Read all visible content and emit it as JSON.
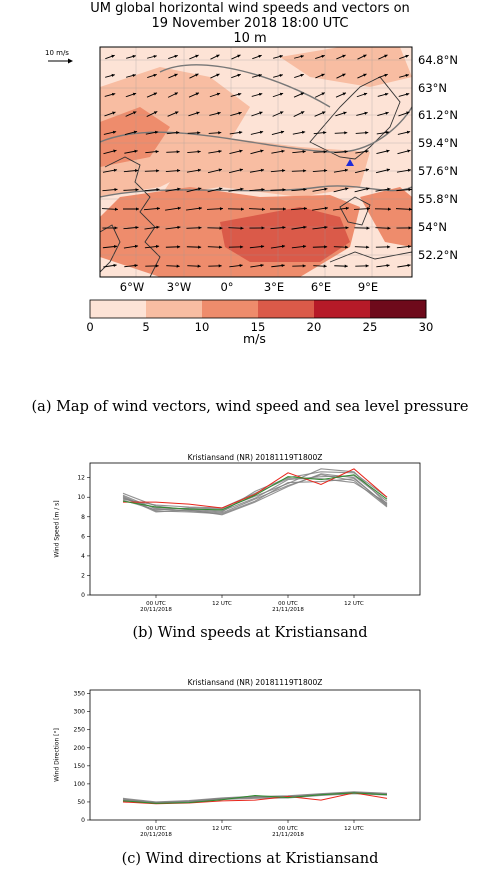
{
  "map": {
    "title_line1": "UM global horizontal wind speeds and vectors on",
    "title_line2": "19 November 2018 18:00 UTC",
    "title_line3": "10 m",
    "ref_vector_label": "10 m/s",
    "lat_labels": [
      "64.8°N",
      "63°N",
      "61.2°N",
      "59.4°N",
      "57.6°N",
      "55.8°N",
      "54°N",
      "52.2°N"
    ],
    "lon_labels": [
      "6°W",
      "3°W",
      "0°",
      "3°E",
      "6°E",
      "9°E"
    ],
    "colorbar_ticks": [
      "0",
      "5",
      "10",
      "15",
      "20",
      "25",
      "30"
    ],
    "colorbar_label": "m/s",
    "colorbar_colors": [
      "#fde3d6",
      "#f8bda2",
      "#ee8c6c",
      "#da5a49",
      "#b61a28",
      "#6e0a1b"
    ],
    "marker_color": "#1f2bd8",
    "caption": "(a) Map of wind vectors, wind speed and sea level pressure"
  },
  "chart_data": [
    {
      "type": "line",
      "title": "Kristiansand (NR) 20181119T1800Z",
      "ylabel": "Wind Speed [m / s]",
      "xlabel": "",
      "ylim": [
        0,
        13.5
      ],
      "yticks": [
        "0",
        "2",
        "4",
        "6",
        "8",
        "10",
        "12"
      ],
      "xtick_labels": [
        {
          "line1": "00 UTC",
          "line2": "20/11/2018"
        },
        {
          "line1": "12 UTC",
          "line2": ""
        },
        {
          "line1": "00 UTC",
          "line2": "21/11/2018"
        },
        {
          "line1": "12 UTC",
          "line2": ""
        }
      ],
      "x_hours": [
        0,
        6,
        12,
        18,
        24,
        30,
        36,
        42,
        48
      ],
      "series": [
        {
          "color": "#e8251b",
          "values": [
            9.5,
            9.5,
            9.3,
            8.9,
            10.3,
            12.5,
            11.3,
            12.9,
            10.0
          ]
        },
        {
          "color": "#2e8b2e",
          "values": [
            9.6,
            9.0,
            8.8,
            8.7,
            10.2,
            12.1,
            11.8,
            12.3,
            9.8
          ]
        },
        {
          "color": "#808080",
          "values": [
            10.1,
            8.6,
            8.5,
            8.3,
            9.6,
            11.5,
            11.6,
            11.9,
            9.2
          ]
        },
        {
          "color": "#808080",
          "values": [
            9.9,
            8.9,
            8.8,
            8.6,
            9.9,
            11.8,
            12.1,
            12.2,
            9.6
          ]
        },
        {
          "color": "#808080",
          "values": [
            10.4,
            9.1,
            8.7,
            8.5,
            10.6,
            12.0,
            12.6,
            12.5,
            10.0
          ]
        },
        {
          "color": "#808080",
          "values": [
            9.7,
            8.7,
            8.9,
            8.8,
            10.1,
            11.4,
            12.9,
            12.6,
            9.3
          ]
        },
        {
          "color": "#808080",
          "values": [
            10.2,
            8.8,
            8.6,
            8.4,
            9.8,
            11.2,
            12.3,
            11.7,
            9.0
          ]
        },
        {
          "color": "#808080",
          "values": [
            9.8,
            9.2,
            9.0,
            8.9,
            10.4,
            11.9,
            11.9,
            11.5,
            9.4
          ]
        },
        {
          "color": "#808080",
          "values": [
            10.0,
            8.5,
            8.7,
            8.2,
            9.5,
            11.1,
            12.4,
            12.0,
            9.1
          ]
        }
      ],
      "caption": "(b) Wind speeds at Kristiansand"
    },
    {
      "type": "line",
      "title": "Kristiansand (NR) 20181119T1800Z",
      "ylabel": "Wind Direction [°]",
      "xlabel": "",
      "ylim": [
        0,
        360
      ],
      "yticks": [
        "0",
        "50",
        "100",
        "150",
        "200",
        "250",
        "300",
        "350"
      ],
      "xtick_labels": [
        {
          "line1": "00 UTC",
          "line2": "20/11/2018"
        },
        {
          "line1": "12 UTC",
          "line2": ""
        },
        {
          "line1": "00 UTC",
          "line2": "21/11/2018"
        },
        {
          "line1": "12 UTC",
          "line2": ""
        }
      ],
      "x_hours": [
        0,
        6,
        12,
        18,
        24,
        30,
        36,
        42,
        48
      ],
      "series": [
        {
          "color": "#e8251b",
          "values": [
            50,
            45,
            47,
            53,
            55,
            65,
            55,
            75,
            60
          ]
        },
        {
          "color": "#2e8b2e",
          "values": [
            53,
            46,
            48,
            56,
            68,
            62,
            70,
            75,
            70
          ]
        },
        {
          "color": "#808080",
          "values": [
            58,
            48,
            52,
            60,
            64,
            66,
            72,
            77,
            73
          ]
        },
        {
          "color": "#808080",
          "values": [
            55,
            46,
            50,
            58,
            62,
            63,
            69,
            74,
            71
          ]
        },
        {
          "color": "#808080",
          "values": [
            60,
            50,
            54,
            61,
            66,
            64,
            71,
            76,
            72
          ]
        },
        {
          "color": "#808080",
          "values": [
            52,
            47,
            49,
            57,
            60,
            61,
            68,
            73,
            69
          ]
        },
        {
          "color": "#808080",
          "values": [
            56,
            49,
            51,
            59,
            65,
            67,
            73,
            78,
            74
          ]
        }
      ],
      "caption": "(c) Wind directions at Kristiansand"
    }
  ]
}
